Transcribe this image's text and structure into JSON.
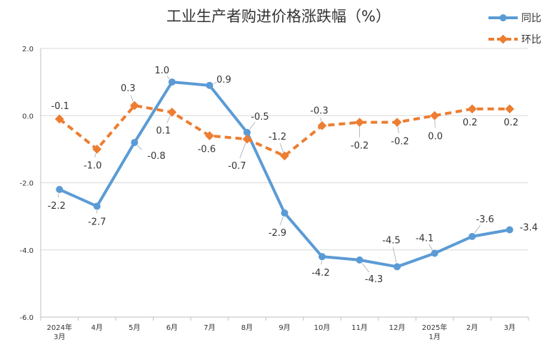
{
  "chart_data": {
    "type": "line",
    "title": "工业生产者购进价格涨跌幅（%）",
    "categories": [
      [
        "2024年",
        "3月"
      ],
      [
        "4月"
      ],
      [
        "5月"
      ],
      [
        "6月"
      ],
      [
        "7月"
      ],
      [
        "8月"
      ],
      [
        "9月"
      ],
      [
        "10月"
      ],
      [
        "11月"
      ],
      [
        "12月"
      ],
      [
        "2025年",
        "1月"
      ],
      [
        "2月"
      ],
      [
        "3月"
      ]
    ],
    "ylim": [
      -6.0,
      2.0
    ],
    "yticks": [
      "2.0",
      "0.0",
      "-2.0",
      "-4.0",
      "-6.0"
    ],
    "ytick_values": [
      2.0,
      0.0,
      -2.0,
      -4.0,
      -6.0
    ],
    "grid": true,
    "legend_position": "top-right",
    "series": [
      {
        "name": "同比",
        "color": "#5B9BD5",
        "style": "solid",
        "values": [
          -2.2,
          -2.7,
          -0.8,
          1.0,
          0.9,
          -0.5,
          -2.9,
          -4.2,
          -4.3,
          -4.5,
          -4.1,
          -3.6,
          -3.4
        ],
        "labels": [
          "-2.2",
          "-2.7",
          "-0.8",
          "1.0",
          "0.9",
          "-0.5",
          "-2.9",
          "-4.2",
          "-4.3",
          "-4.5",
          "-4.1",
          "-3.6",
          "-3.4"
        ]
      },
      {
        "name": "环比",
        "color": "#ED7D31",
        "style": "dashed",
        "values": [
          -0.1,
          -1.0,
          0.3,
          0.1,
          -0.6,
          -0.7,
          -1.2,
          -0.3,
          -0.2,
          -0.2,
          0.0,
          0.2,
          0.2
        ],
        "labels": [
          "-0.1",
          "-1.0",
          "0.3",
          "0.1",
          "-0.6",
          "-0.7",
          "-1.2",
          "-0.3",
          "-0.2",
          "-0.2",
          "0.0",
          "0.2",
          "0.2"
        ]
      }
    ]
  }
}
